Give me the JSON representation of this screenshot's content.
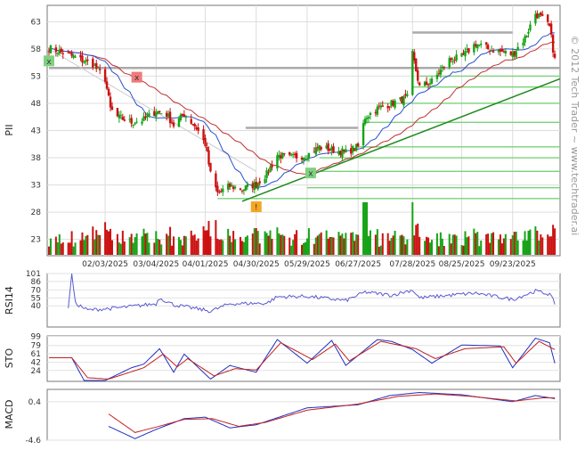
{
  "chart_data": [
    {
      "type": "candlestick",
      "panel": "price",
      "symbol": "PII",
      "watermark": "© 2012 Tech Trader ~ www.techtrader.ai",
      "ylim": [
        20,
        66
      ],
      "yticks": [
        23,
        28,
        33,
        38,
        43,
        48,
        53,
        58,
        63
      ],
      "date_start": "2025-01-01",
      "date_end": "2025-10-20",
      "xticks": [
        "02/03/2025",
        "03/04/2025",
        "04/01/2025",
        "04/30/2025",
        "05/29/2025",
        "06/27/2025",
        "07/28/2025",
        "08/25/2025",
        "09/23/2025"
      ],
      "close_path": [
        [
          "2025-01-02",
          58.2
        ],
        [
          "2025-01-08",
          57.5
        ],
        [
          "2025-01-14",
          56.8
        ],
        [
          "2025-01-20",
          56.0
        ],
        [
          "2025-01-27",
          55.2
        ],
        [
          "2025-02-03",
          52.5
        ],
        [
          "2025-02-06",
          47.0
        ],
        [
          "2025-02-10",
          45.5
        ],
        [
          "2025-02-18",
          44.5
        ],
        [
          "2025-02-25",
          45.0
        ],
        [
          "2025-03-04",
          46.5
        ],
        [
          "2025-03-10",
          46.0
        ],
        [
          "2025-03-14",
          44.0
        ],
        [
          "2025-03-20",
          46.0
        ],
        [
          "2025-03-27",
          43.5
        ],
        [
          "2025-04-01",
          40.5
        ],
        [
          "2025-04-04",
          35.0
        ],
        [
          "2025-04-08",
          31.5
        ],
        [
          "2025-04-15",
          32.8
        ],
        [
          "2025-04-22",
          32.2
        ],
        [
          "2025-04-30",
          33.2
        ],
        [
          "2025-05-06",
          35.0
        ],
        [
          "2025-05-12",
          38.5
        ],
        [
          "2025-05-19",
          38.0
        ],
        [
          "2025-05-29",
          38.5
        ],
        [
          "2025-06-05",
          40.0
        ],
        [
          "2025-06-12",
          39.5
        ],
        [
          "2025-06-20",
          39.0
        ],
        [
          "2025-06-27",
          40.0
        ],
        [
          "2025-07-01",
          45.5
        ],
        [
          "2025-07-08",
          47.0
        ],
        [
          "2025-07-16",
          48.0
        ],
        [
          "2025-07-25",
          49.0
        ],
        [
          "2025-07-28",
          57.0
        ],
        [
          "2025-08-01",
          51.0
        ],
        [
          "2025-08-08",
          52.0
        ],
        [
          "2025-08-18",
          56.0
        ],
        [
          "2025-08-25",
          56.5
        ],
        [
          "2025-09-02",
          59.0
        ],
        [
          "2025-09-09",
          58.0
        ],
        [
          "2025-09-16",
          57.5
        ],
        [
          "2025-09-23",
          57.0
        ],
        [
          "2025-09-30",
          60.0
        ],
        [
          "2025-10-06",
          64.5
        ],
        [
          "2025-10-10",
          63.5
        ],
        [
          "2025-10-14",
          62.0
        ],
        [
          "2025-10-17",
          56.0
        ]
      ],
      "volume_max_bar_date": "2025-07-01",
      "annotations": [
        {
          "date": "2025-01-02",
          "price": 55.8,
          "label": "x",
          "color": "#7fd17f"
        },
        {
          "date": "2025-02-21",
          "price": 52.8,
          "label": "x",
          "color": "#f07a7a"
        },
        {
          "date": "2025-05-31",
          "price": 35.2,
          "label": "x",
          "color": "#7fd17f"
        },
        {
          "date": "2025-04-30",
          "price": 29.0,
          "label": "!",
          "color": "#f5a623"
        }
      ],
      "resistance_lines": [
        {
          "from": "2025-01-02",
          "to": "2025-10-20",
          "price": 54.5
        },
        {
          "from": "2025-04-24",
          "to": "2025-06-27",
          "price": 43.5
        },
        {
          "from": "2025-07-28",
          "to": "2025-09-23",
          "price": 61.0
        }
      ],
      "support_lines": [
        {
          "from": "2025-04-08",
          "to": "2025-10-20",
          "price": 30.5
        },
        {
          "from": "2025-05-29",
          "to": "2025-10-20",
          "price": 32.5
        },
        {
          "from": "2025-06-05",
          "to": "2025-10-20",
          "price": 35.5
        },
        {
          "from": "2025-06-05",
          "to": "2025-10-20",
          "price": 38.0
        },
        {
          "from": "2025-06-27",
          "to": "2025-10-20",
          "price": 40.0
        },
        {
          "from": "2025-07-01",
          "to": "2025-10-20",
          "price": 44.5
        },
        {
          "from": "2025-07-10",
          "to": "2025-10-20",
          "price": 48.0
        },
        {
          "from": "2025-07-28",
          "to": "2025-10-20",
          "price": 51.0
        },
        {
          "from": "2025-08-01",
          "to": "2025-10-20",
          "price": 53.0
        }
      ],
      "trendline": {
        "from": [
          "2025-04-22",
          30.0
        ],
        "to": [
          "2025-10-20",
          52.5
        ]
      },
      "downtrend_line": {
        "from": [
          "2025-01-02",
          58.0
        ],
        "to": [
          "2025-04-30",
          35.5
        ]
      },
      "colors": {
        "up": "#16a316",
        "down": "#cc1010",
        "ma_fast": "#2a50d0",
        "ma_slow": "#c03030",
        "grey": "#aaaaaa",
        "support": "#7ad27a",
        "trend": "#1e8a1e"
      }
    },
    {
      "type": "line",
      "panel": "rsi",
      "title": "RSI14",
      "ylim": [
        0,
        101
      ],
      "yticks": [
        40,
        55,
        70,
        86,
        101
      ],
      "points": [
        [
          "2025-01-13",
          38
        ],
        [
          "2025-01-15",
          101
        ],
        [
          "2025-01-17",
          45
        ],
        [
          "2025-01-24",
          32
        ],
        [
          "2025-02-10",
          36
        ],
        [
          "2025-03-04",
          44
        ],
        [
          "2025-03-06",
          55
        ],
        [
          "2025-03-14",
          42
        ],
        [
          "2025-04-04",
          30
        ],
        [
          "2025-04-15",
          44
        ],
        [
          "2025-05-06",
          45
        ],
        [
          "2025-05-12",
          57
        ],
        [
          "2025-05-29",
          58
        ],
        [
          "2025-06-20",
          50
        ],
        [
          "2025-07-01",
          66
        ],
        [
          "2025-07-16",
          60
        ],
        [
          "2025-07-28",
          70
        ],
        [
          "2025-08-01",
          55
        ],
        [
          "2025-08-18",
          60
        ],
        [
          "2025-09-02",
          64
        ],
        [
          "2025-09-23",
          52
        ],
        [
          "2025-10-06",
          68
        ],
        [
          "2025-10-14",
          62
        ],
        [
          "2025-10-17",
          45
        ]
      ],
      "color": "#5a5ad0"
    },
    {
      "type": "line",
      "panel": "stochastic",
      "title": "STO",
      "ylim": [
        0,
        100
      ],
      "yticks": [
        24,
        42,
        61,
        79,
        99
      ],
      "series": [
        {
          "color": "#2030c0",
          "points": [
            [
              "2025-01-02",
              52
            ],
            [
              "2025-01-15",
              52
            ],
            [
              "2025-01-22",
              2
            ],
            [
              "2025-02-03",
              2
            ],
            [
              "2025-02-18",
              30
            ],
            [
              "2025-02-25",
              38
            ],
            [
              "2025-03-06",
              72
            ],
            [
              "2025-03-14",
              20
            ],
            [
              "2025-03-20",
              60
            ],
            [
              "2025-04-04",
              5
            ],
            [
              "2025-04-15",
              35
            ],
            [
              "2025-04-30",
              20
            ],
            [
              "2025-05-12",
              92
            ],
            [
              "2025-05-29",
              40
            ],
            [
              "2025-06-12",
              90
            ],
            [
              "2025-06-20",
              35
            ],
            [
              "2025-07-08",
              92
            ],
            [
              "2025-07-16",
              88
            ],
            [
              "2025-07-28",
              70
            ],
            [
              "2025-08-08",
              40
            ],
            [
              "2025-08-25",
              80
            ],
            [
              "2025-09-16",
              78
            ],
            [
              "2025-09-23",
              30
            ],
            [
              "2025-10-06",
              95
            ],
            [
              "2025-10-14",
              85
            ],
            [
              "2025-10-17",
              40
            ]
          ]
        },
        {
          "color": "#c02020",
          "points": [
            [
              "2025-01-02",
              52
            ],
            [
              "2025-01-15",
              52
            ],
            [
              "2025-01-24",
              8
            ],
            [
              "2025-02-05",
              5
            ],
            [
              "2025-02-25",
              30
            ],
            [
              "2025-03-08",
              60
            ],
            [
              "2025-03-16",
              32
            ],
            [
              "2025-03-22",
              50
            ],
            [
              "2025-04-06",
              12
            ],
            [
              "2025-04-18",
              28
            ],
            [
              "2025-04-30",
              25
            ],
            [
              "2025-05-14",
              85
            ],
            [
              "2025-06-01",
              48
            ],
            [
              "2025-06-14",
              82
            ],
            [
              "2025-06-22",
              45
            ],
            [
              "2025-07-10",
              88
            ],
            [
              "2025-07-30",
              72
            ],
            [
              "2025-08-10",
              50
            ],
            [
              "2025-08-27",
              72
            ],
            [
              "2025-09-18",
              76
            ],
            [
              "2025-09-25",
              40
            ],
            [
              "2025-10-08",
              88
            ],
            [
              "2025-10-17",
              70
            ]
          ]
        }
      ]
    },
    {
      "type": "line",
      "panel": "macd",
      "title": "MACD",
      "ylim": [
        -4.6,
        2.0
      ],
      "yticks": [
        -4.6,
        0.4
      ],
      "series": [
        {
          "color": "#2030c0",
          "points": [
            [
              "2025-02-05",
              -2.8
            ],
            [
              "2025-02-20",
              -4.4
            ],
            [
              "2025-03-04",
              -3.2
            ],
            [
              "2025-03-20",
              -1.8
            ],
            [
              "2025-04-01",
              -1.6
            ],
            [
              "2025-04-15",
              -3.0
            ],
            [
              "2025-04-30",
              -2.6
            ],
            [
              "2025-05-29",
              -0.4
            ],
            [
              "2025-06-27",
              0.0
            ],
            [
              "2025-07-15",
              1.2
            ],
            [
              "2025-08-01",
              1.6
            ],
            [
              "2025-08-25",
              1.3
            ],
            [
              "2025-09-23",
              0.4
            ],
            [
              "2025-10-06",
              1.2
            ],
            [
              "2025-10-17",
              0.8
            ]
          ]
        },
        {
          "color": "#c02020",
          "points": [
            [
              "2025-02-05",
              -1.2
            ],
            [
              "2025-02-20",
              -3.6
            ],
            [
              "2025-03-04",
              -2.9
            ],
            [
              "2025-03-20",
              -1.9
            ],
            [
              "2025-04-05",
              -1.8
            ],
            [
              "2025-04-20",
              -2.8
            ],
            [
              "2025-05-05",
              -2.3
            ],
            [
              "2025-05-29",
              -0.7
            ],
            [
              "2025-06-27",
              0.1
            ],
            [
              "2025-07-20",
              1.1
            ],
            [
              "2025-08-10",
              1.4
            ],
            [
              "2025-08-30",
              1.1
            ],
            [
              "2025-09-25",
              0.5
            ],
            [
              "2025-10-10",
              0.9
            ],
            [
              "2025-10-17",
              0.9
            ]
          ]
        }
      ]
    }
  ]
}
